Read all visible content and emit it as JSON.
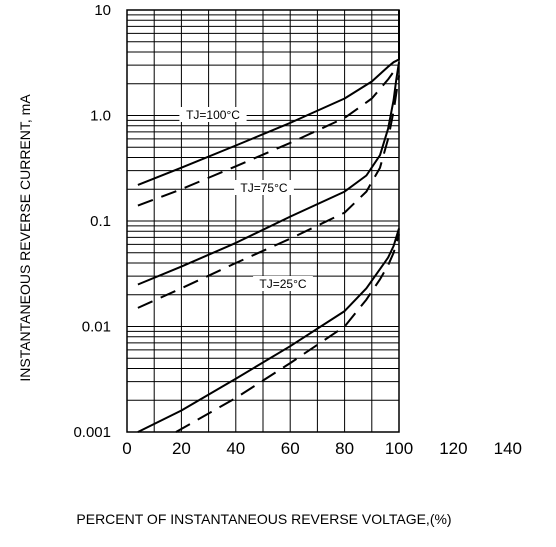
{
  "chart_data": {
    "type": "line",
    "title": "",
    "xlabel": "PERCENT OF INSTANTANEOUS REVERSE VOLTAGE,(%)",
    "ylabel": "INSTANTANEOUS REVERSE CURRENT, mA",
    "x_ticks": [
      "0",
      "20",
      "40",
      "60",
      "80",
      "100",
      "120",
      "140"
    ],
    "y_ticks": [
      "0.001",
      "0.01",
      "0.1",
      "1.0",
      "10"
    ],
    "xlim": [
      0,
      140
    ],
    "ylim": [
      0.001,
      10
    ],
    "y_scale": "log",
    "grid": true,
    "annotations": [
      "TJ=100°C",
      "TJ=75°C",
      "TJ=25°C"
    ],
    "series": [
      {
        "style": "solid",
        "x": [
          4,
          20,
          40,
          60,
          80,
          90,
          96,
          98,
          99,
          100,
          100
        ],
        "y": [
          0.22,
          0.32,
          0.52,
          0.85,
          1.45,
          2.1,
          2.9,
          3.2,
          3.3,
          3.4,
          10
        ]
      },
      {
        "style": "dashed",
        "x": [
          4,
          20,
          40,
          60,
          80,
          90,
          96,
          98,
          100
        ],
        "y": [
          0.14,
          0.2,
          0.33,
          0.55,
          0.95,
          1.45,
          2.2,
          2.6,
          3.0
        ]
      },
      {
        "style": "solid",
        "x": [
          4,
          20,
          40,
          60,
          80,
          88,
          93,
          96,
          98,
          99,
          100
        ],
        "y": [
          0.025,
          0.037,
          0.062,
          0.11,
          0.19,
          0.27,
          0.42,
          0.75,
          1.4,
          2.2,
          3.2
        ]
      },
      {
        "style": "dashed",
        "x": [
          4,
          20,
          40,
          60,
          80,
          88,
          93,
          96,
          98,
          100
        ],
        "y": [
          0.015,
          0.023,
          0.04,
          0.068,
          0.12,
          0.19,
          0.32,
          0.6,
          1.1,
          2.4
        ]
      },
      {
        "style": "solid",
        "x": [
          4,
          20,
          40,
          60,
          80,
          88,
          93,
          96,
          98,
          100
        ],
        "y": [
          0.001,
          0.0016,
          0.0032,
          0.0065,
          0.014,
          0.023,
          0.035,
          0.045,
          0.058,
          0.085
        ]
      },
      {
        "style": "dashed",
        "x": [
          18,
          40,
          60,
          80,
          88,
          93,
          96,
          98,
          100
        ],
        "y": [
          0.001,
          0.0021,
          0.0045,
          0.01,
          0.018,
          0.028,
          0.038,
          0.05,
          0.075
        ]
      }
    ]
  }
}
